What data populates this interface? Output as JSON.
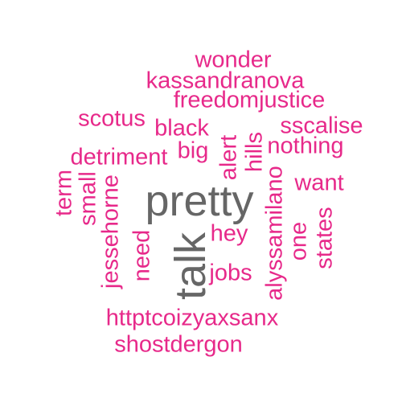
{
  "colors": {
    "pink": "#e7298a",
    "gray": "#666666",
    "background": "#ffffff"
  },
  "words": {
    "wonder": "wonder",
    "kassandranova": "kassandranova",
    "freedomjustice": "freedomjustice",
    "scotus": "scotus",
    "black": "black",
    "sscalise": "sscalise",
    "nothing": "nothing",
    "detriment": "detriment",
    "big": "big",
    "alert": "alert",
    "hills": "hills",
    "want": "want",
    "term": "term",
    "small": "small",
    "pretty": "pretty",
    "alyssamilano": "alyssamilano",
    "jessehorne": "jessehorne",
    "hey": "hey",
    "one": "one",
    "states": "states",
    "need": "need",
    "talk": "talk",
    "jobs": "jobs",
    "httptcoizyaxsanx": "httptcoizyaxsanx",
    "shostdergon": "shostdergon"
  }
}
